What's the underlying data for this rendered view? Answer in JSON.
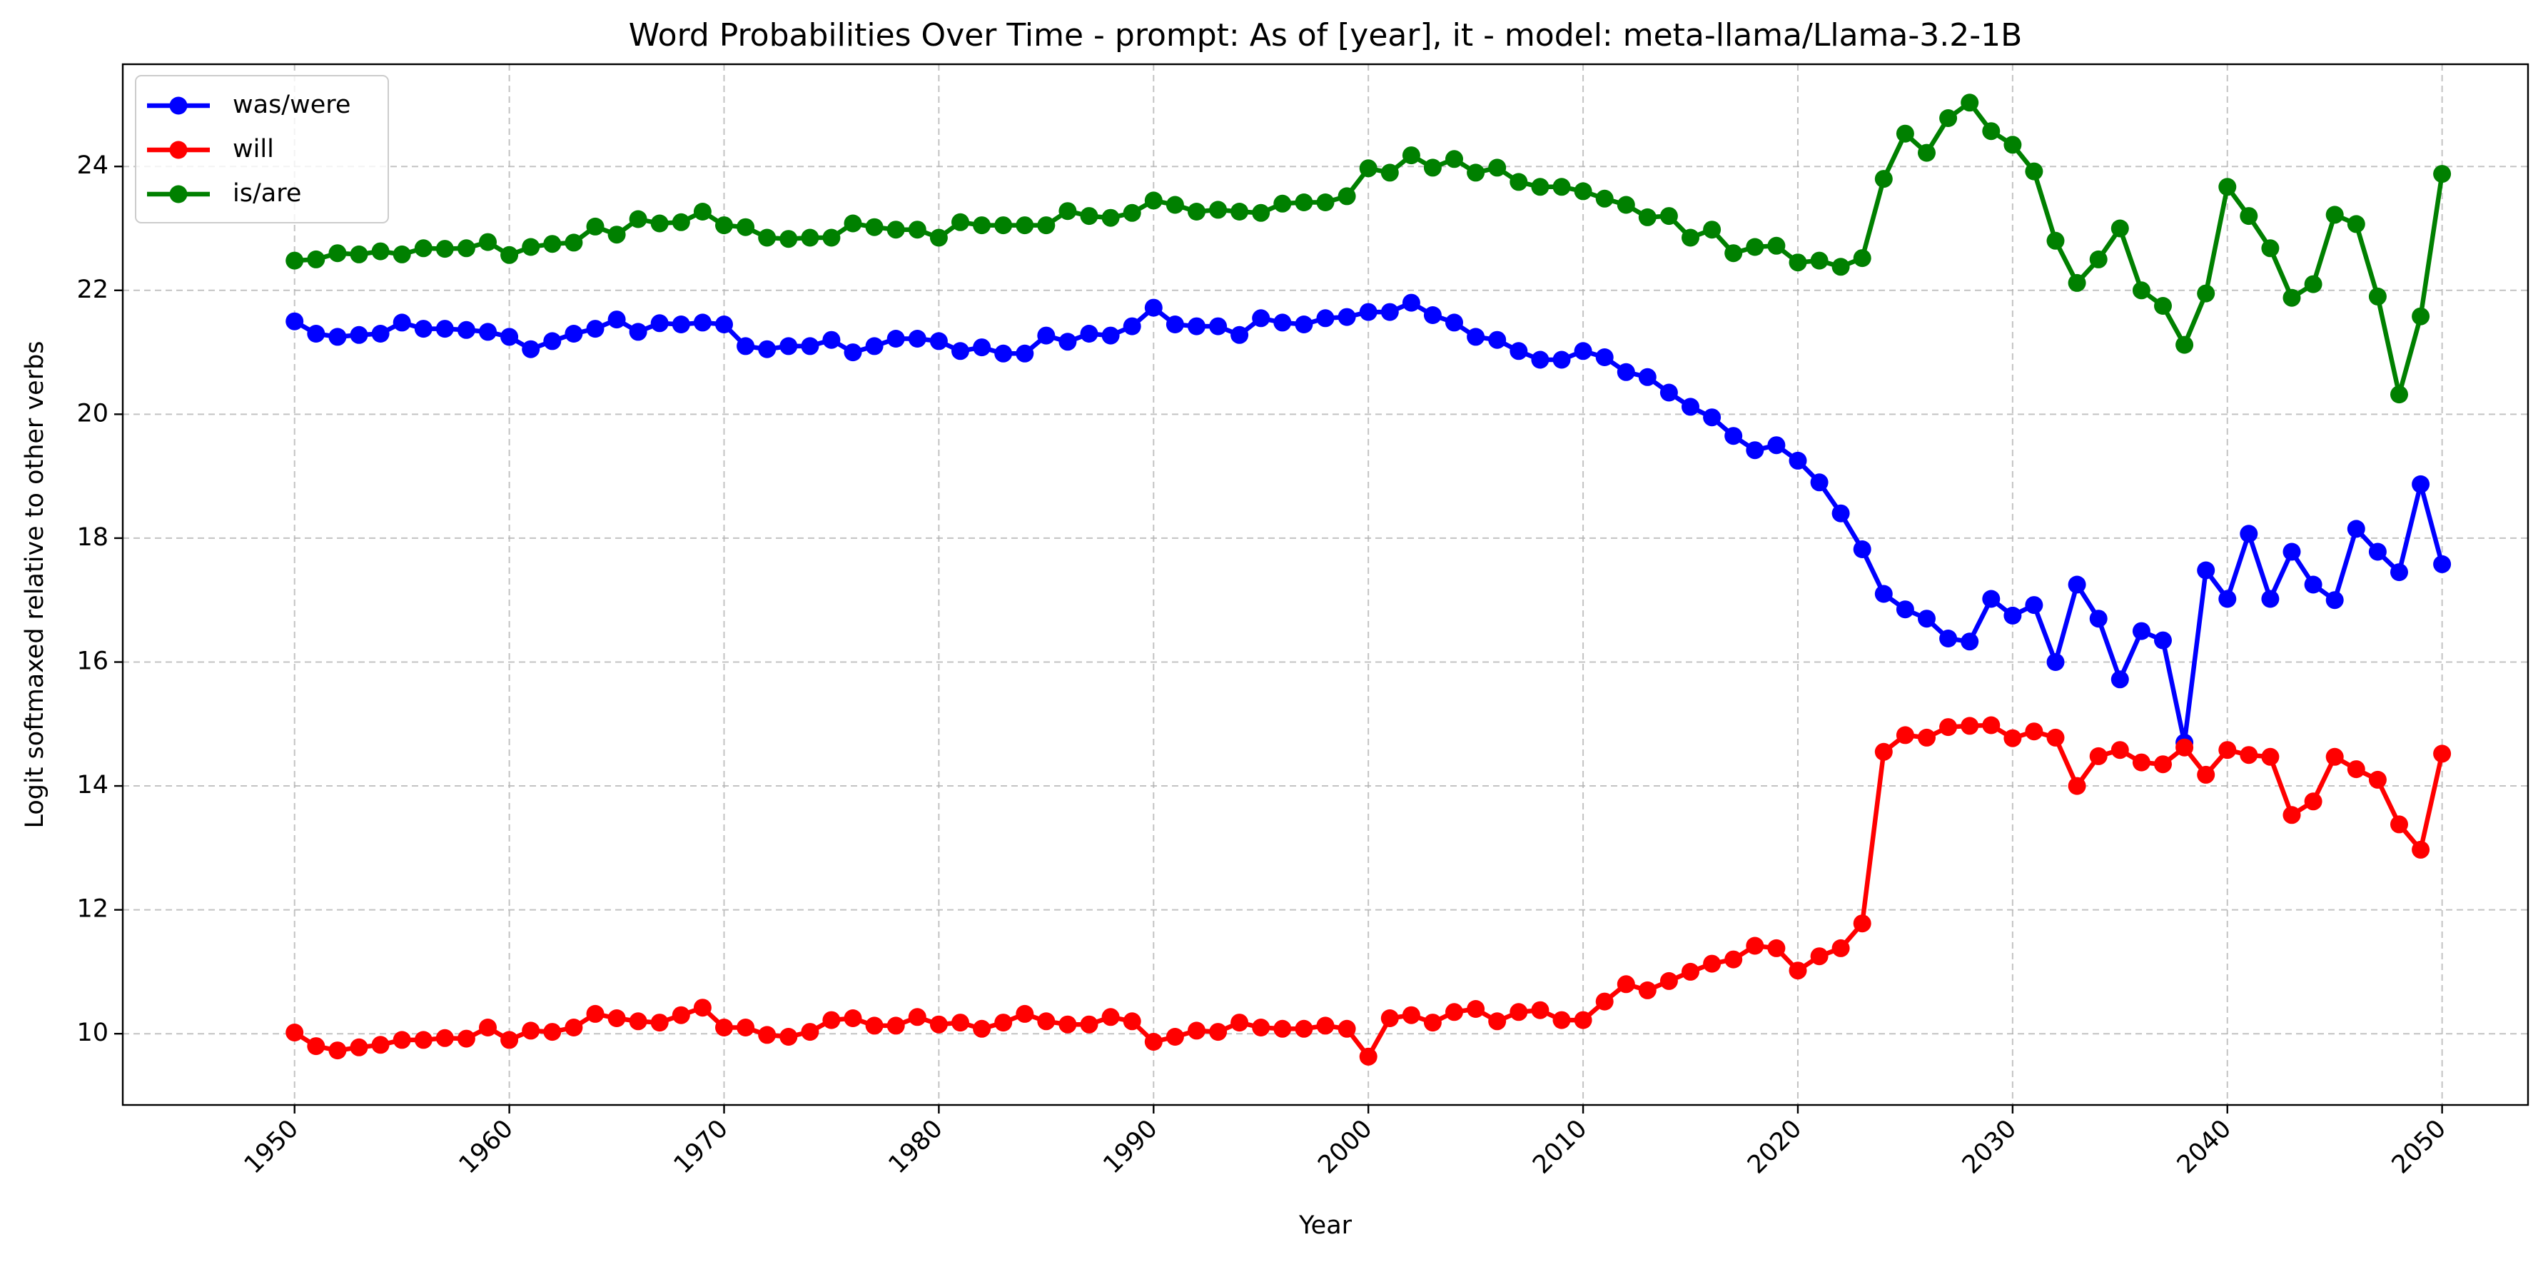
{
  "chart_data": {
    "type": "line",
    "title": "Word Probabilities Over Time - prompt: As of [year], it - model: meta-llama/Llama-3.2-1B",
    "xlabel": "Year",
    "ylabel": "Logit softmaxed relative to other verbs",
    "xlim": [
      1942,
      2054
    ],
    "ylim": [
      8.85,
      25.65
    ],
    "xticks": [
      "1950",
      "1960",
      "1970",
      "1980",
      "1990",
      "2000",
      "2010",
      "2020",
      "2030",
      "2040",
      "2050"
    ],
    "yticks": [
      "10",
      "12",
      "14",
      "16",
      "18",
      "20",
      "22",
      "24"
    ],
    "xtick_rotation": 45,
    "grid": true,
    "legend_position": "upper-left",
    "x_start": 1950,
    "x_end": 2050,
    "series": [
      {
        "name": "was/were",
        "color": "#0000ff",
        "values": [
          21.5,
          21.3,
          21.25,
          21.28,
          21.3,
          21.48,
          21.38,
          21.38,
          21.36,
          21.33,
          21.25,
          21.05,
          21.18,
          21.3,
          21.38,
          21.53,
          21.33,
          21.47,
          21.45,
          21.48,
          21.45,
          21.1,
          21.05,
          21.1,
          21.1,
          21.2,
          21.0,
          21.1,
          21.22,
          21.22,
          21.18,
          21.02,
          21.08,
          20.98,
          20.98,
          21.27,
          21.17,
          21.3,
          21.27,
          21.42,
          21.72,
          21.45,
          21.42,
          21.42,
          21.28,
          21.55,
          21.48,
          21.45,
          21.55,
          21.57,
          21.65,
          21.65,
          21.8,
          21.6,
          21.48,
          21.25,
          21.2,
          21.02,
          20.88,
          20.88,
          21.02,
          20.92,
          20.68,
          20.6,
          20.35,
          20.12,
          19.95,
          19.65,
          19.42,
          19.5,
          19.25,
          18.9,
          18.4,
          17.82,
          17.1,
          16.85,
          16.7,
          16.38,
          16.33,
          17.02,
          16.75,
          16.92,
          16.0,
          17.25,
          16.7,
          15.72,
          16.5,
          16.35,
          14.7,
          17.48,
          17.02,
          18.07,
          17.02,
          17.78,
          17.25,
          17.0,
          18.15,
          17.78,
          17.45,
          18.87,
          17.58
        ]
      },
      {
        "name": "will",
        "color": "#ff0000",
        "values": [
          10.02,
          9.8,
          9.73,
          9.78,
          9.82,
          9.9,
          9.9,
          9.93,
          9.92,
          10.1,
          9.9,
          10.05,
          10.03,
          10.1,
          10.32,
          10.25,
          10.2,
          10.18,
          10.3,
          10.42,
          10.1,
          10.1,
          9.98,
          9.95,
          10.03,
          10.22,
          10.25,
          10.13,
          10.13,
          10.27,
          10.15,
          10.18,
          10.08,
          10.18,
          10.32,
          10.2,
          10.15,
          10.15,
          10.27,
          10.2,
          9.87,
          9.95,
          10.05,
          10.03,
          10.18,
          10.1,
          10.08,
          10.08,
          10.13,
          10.08,
          9.63,
          10.25,
          10.3,
          10.18,
          10.35,
          10.4,
          10.2,
          10.35,
          10.38,
          10.22,
          10.22,
          10.52,
          10.8,
          10.7,
          10.85,
          11.0,
          11.13,
          11.2,
          11.42,
          11.38,
          11.02,
          11.25,
          11.38,
          11.78,
          14.55,
          14.82,
          14.78,
          14.95,
          14.97,
          14.98,
          14.77,
          14.88,
          14.78,
          14.0,
          14.48,
          14.58,
          14.38,
          14.35,
          14.62,
          14.18,
          14.58,
          14.5,
          14.47,
          13.53,
          13.75,
          14.47,
          14.27,
          14.1,
          13.38,
          12.97,
          14.52
        ]
      },
      {
        "name": "is/are",
        "color": "#008000",
        "values": [
          22.48,
          22.5,
          22.6,
          22.58,
          22.63,
          22.58,
          22.68,
          22.67,
          22.68,
          22.78,
          22.57,
          22.7,
          22.75,
          22.77,
          23.03,
          22.9,
          23.15,
          23.08,
          23.1,
          23.27,
          23.05,
          23.02,
          22.85,
          22.83,
          22.85,
          22.85,
          23.08,
          23.02,
          22.98,
          22.98,
          22.85,
          23.1,
          23.05,
          23.05,
          23.05,
          23.05,
          23.28,
          23.2,
          23.17,
          23.25,
          23.45,
          23.38,
          23.27,
          23.3,
          23.27,
          23.25,
          23.4,
          23.42,
          23.42,
          23.52,
          23.97,
          23.9,
          24.18,
          23.98,
          24.12,
          23.9,
          23.98,
          23.75,
          23.67,
          23.67,
          23.6,
          23.48,
          23.38,
          23.18,
          23.2,
          22.85,
          22.98,
          22.6,
          22.7,
          22.72,
          22.45,
          22.48,
          22.38,
          22.52,
          23.8,
          24.53,
          24.22,
          24.78,
          25.03,
          24.57,
          24.35,
          23.92,
          22.8,
          22.12,
          22.5,
          23.0,
          22.0,
          21.75,
          21.12,
          21.95,
          23.67,
          23.2,
          22.68,
          21.88,
          22.1,
          23.22,
          23.07,
          21.9,
          20.32,
          21.58,
          23.88
        ]
      }
    ]
  }
}
